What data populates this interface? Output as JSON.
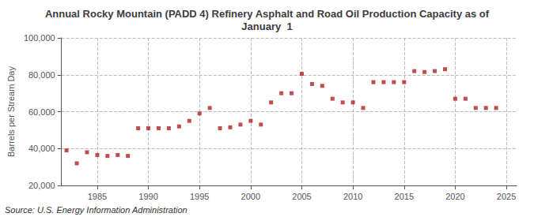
{
  "chart_data": {
    "type": "scatter",
    "title": "Annual Rocky Mountain (PADD 4) Refinery Asphalt and Road Oil Production Capacity as of\nJanuary  1",
    "ylabel": "Barrels per Stream Day",
    "source": "Source: U.S. Energy Information Administration",
    "color": "#b22222",
    "marker": "square",
    "x": [
      1982,
      1983,
      1984,
      1985,
      1986,
      1987,
      1988,
      1989,
      1990,
      1991,
      1992,
      1993,
      1994,
      1995,
      1996,
      1997,
      1998,
      1999,
      2000,
      2001,
      2002,
      2003,
      2004,
      2005,
      2006,
      2007,
      2008,
      2009,
      2010,
      2011,
      2012,
      2013,
      2014,
      2015,
      2016,
      2017,
      2018,
      2019,
      2020,
      2021,
      2022,
      2023,
      2024
    ],
    "values": [
      39000,
      32000,
      38000,
      36500,
      36000,
      36500,
      36000,
      51000,
      51000,
      51000,
      51000,
      52000,
      55000,
      59000,
      62000,
      51000,
      51500,
      53000,
      55000,
      53000,
      65000,
      70000,
      70000,
      80500,
      75000,
      74000,
      67000,
      65000,
      65000,
      62000,
      76000,
      76000,
      76000,
      76000,
      82000,
      81500,
      82000,
      83000,
      67000,
      67000,
      62000,
      62000,
      62000
    ],
    "xlim": [
      1981.5,
      2026
    ],
    "xticks": [
      1985,
      1990,
      1995,
      2000,
      2005,
      2010,
      2015,
      2020,
      2025
    ],
    "ylim": [
      20000,
      100000
    ],
    "yticks": [
      {
        "value": 20000,
        "label": "20,000"
      },
      {
        "value": 40000,
        "label": "40,000"
      },
      {
        "value": 60000,
        "label": "60,000"
      },
      {
        "value": 80000,
        "label": "80,000"
      },
      {
        "value": 100000,
        "label": "100,000"
      }
    ],
    "grid": true
  }
}
